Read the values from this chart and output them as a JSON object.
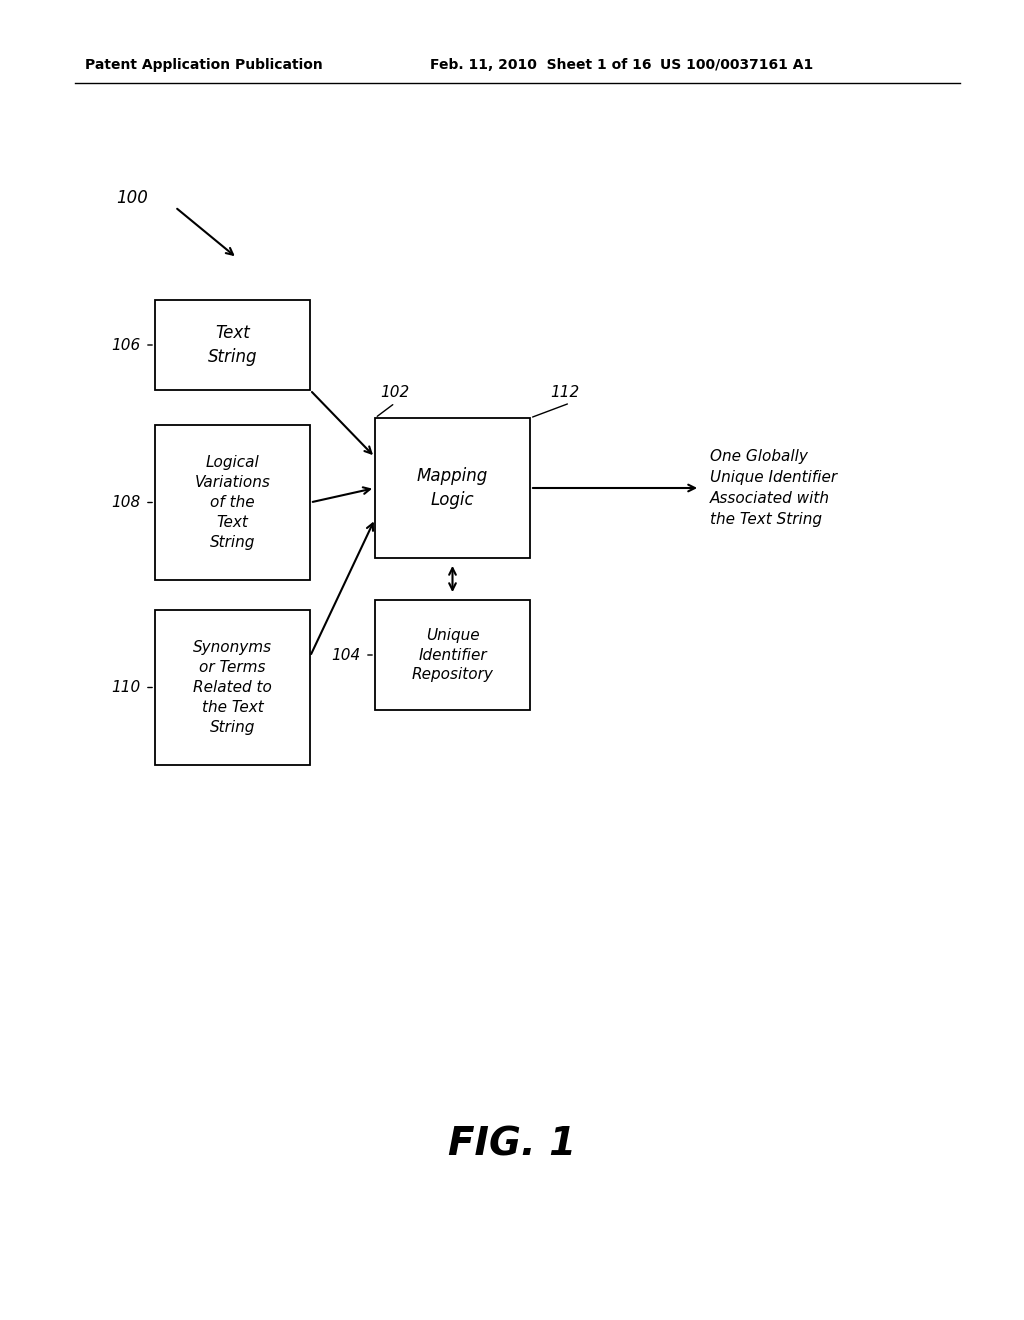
{
  "header_left": "Patent Application Publication",
  "header_mid": "Feb. 11, 2010  Sheet 1 of 16",
  "header_right": "US 100/0037161 A1",
  "fig_label": "FIG. 1",
  "label_100": "100",
  "label_102": "102",
  "label_104": "104",
  "label_106": "106",
  "label_108": "108",
  "label_110": "110",
  "label_112": "112",
  "box_106_text": "Text\nString",
  "box_108_text": "Logical\nVariations\nof the\nText\nString",
  "box_110_text": "Synonyms\nor Terms\nRelated to\nthe Text\nString",
  "box_102_text": "Mapping\nLogic",
  "box_104_text": "Unique\nIdentifier\nRepository",
  "output_text": "One Globally\nUnique Identifier\nAssociated with\nthe Text String",
  "bg_color": "#ffffff",
  "box_color": "#ffffff",
  "box_edge_color": "#000000",
  "text_color": "#000000"
}
